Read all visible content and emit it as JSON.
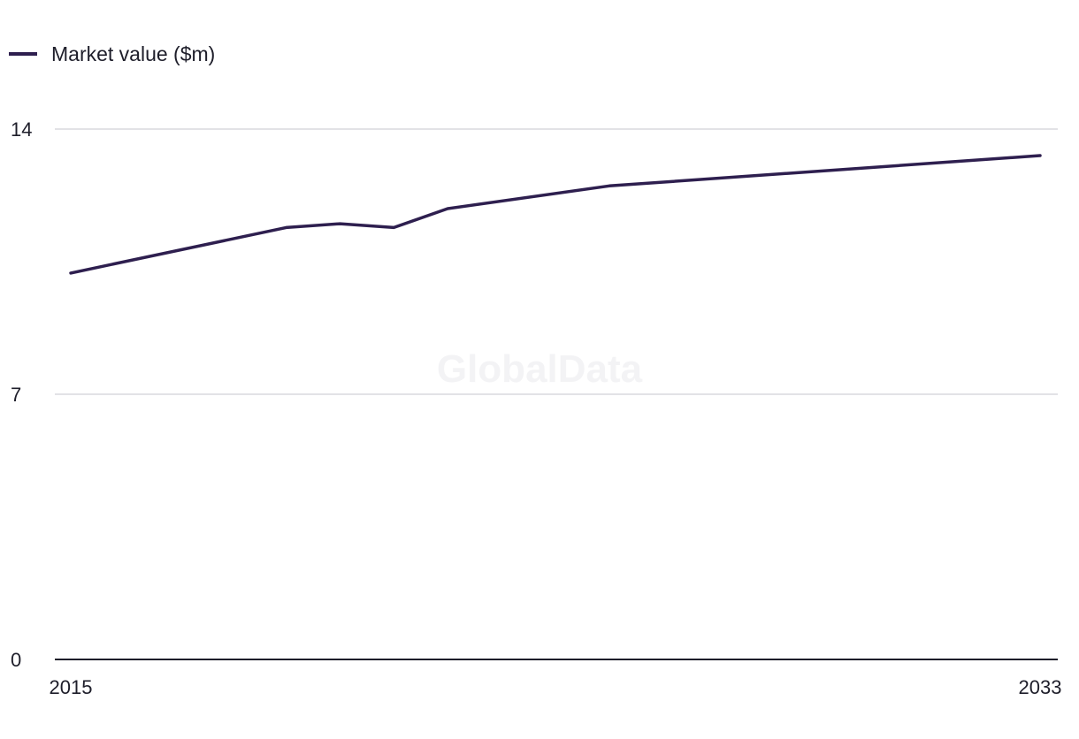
{
  "watermark": "GlobalData",
  "colors": {
    "series": "#2e1f4f",
    "grid": "#d9d9de",
    "axis": "#1e1e2a"
  },
  "chart_data": {
    "type": "line",
    "title": "",
    "xlabel": "",
    "ylabel": "",
    "ylim": [
      0,
      14
    ],
    "xlim": [
      2015,
      2033
    ],
    "yticks": [
      0,
      7,
      14
    ],
    "xtick_labels": [
      "2015",
      "2033"
    ],
    "grid": true,
    "legend_position": "top-left",
    "series": [
      {
        "name": "Market value ($m)",
        "x": [
          2015,
          2019,
          2020,
          2021,
          2022,
          2025,
          2033
        ],
        "y": [
          10.2,
          11.4,
          11.5,
          11.4,
          11.9,
          12.5,
          13.3
        ]
      }
    ]
  }
}
